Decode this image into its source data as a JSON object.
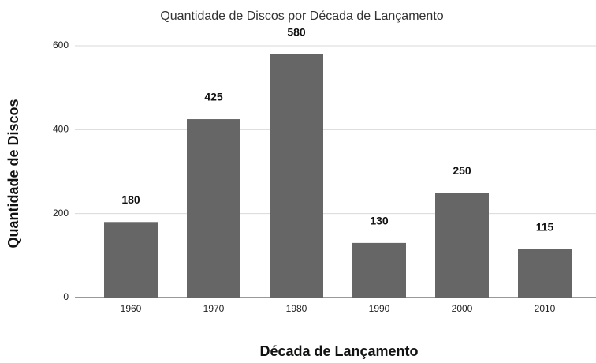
{
  "chart_data": {
    "type": "bar",
    "title": "Quantidade de Discos por Década de Lançamento",
    "x_label": "Década de Lançamento",
    "y_label": "Quantidade de Discos",
    "categories": [
      "1960",
      "1970",
      "1980",
      "1990",
      "2000",
      "2010"
    ],
    "values": [
      180,
      425,
      580,
      130,
      250,
      115
    ],
    "color": "#666666",
    "ylim": [
      0,
      600
    ],
    "yticks": [
      0,
      200,
      400,
      600
    ],
    "grid": true
  }
}
